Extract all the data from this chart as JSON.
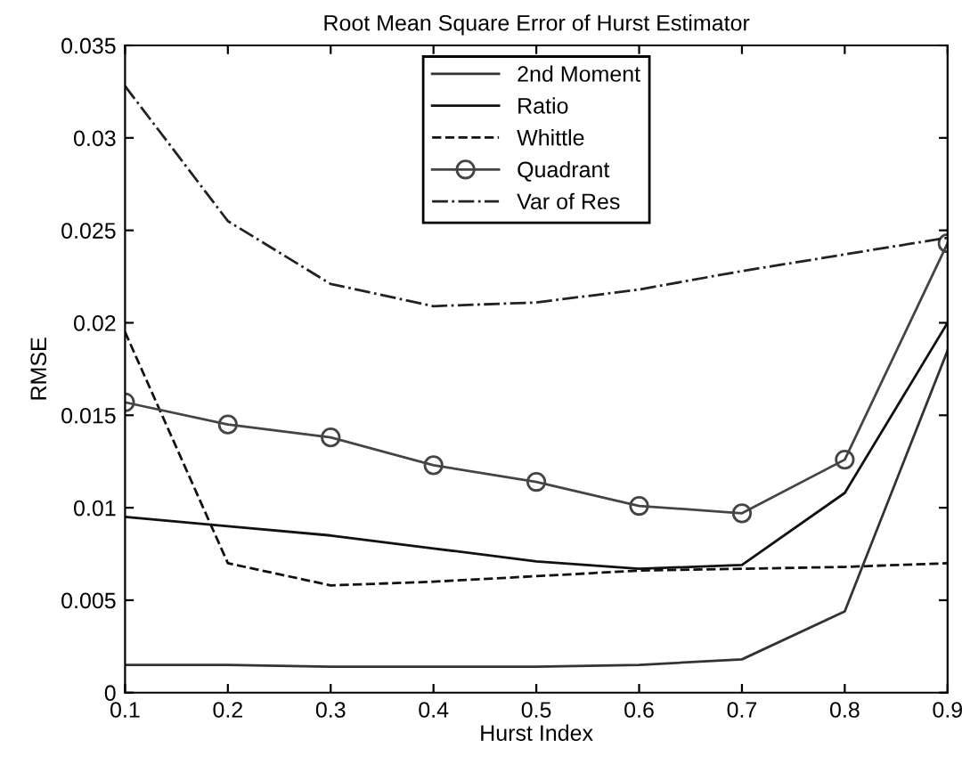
{
  "chart_data": {
    "type": "line",
    "title": "Root Mean Square Error of Hurst Estimator",
    "xlabel": "Hurst Index",
    "ylabel": "RMSE",
    "x": [
      0.1,
      0.2,
      0.3,
      0.4,
      0.5,
      0.6,
      0.7,
      0.8,
      0.9
    ],
    "series": [
      {
        "name": "2nd Moment",
        "color": "#333333",
        "line_style": "solid",
        "marker": "none",
        "values": [
          0.0015,
          0.0015,
          0.0014,
          0.0014,
          0.0014,
          0.0015,
          0.0018,
          0.0044,
          0.0185
        ]
      },
      {
        "name": "Ratio",
        "color": "#111111",
        "line_style": "solid",
        "marker": "none",
        "values": [
          0.0095,
          0.009,
          0.0085,
          0.0078,
          0.0071,
          0.0067,
          0.0069,
          0.0108,
          0.02
        ]
      },
      {
        "name": "Whittle",
        "color": "#111111",
        "line_style": "dashed",
        "marker": "none",
        "values": [
          0.0195,
          0.007,
          0.0058,
          0.006,
          0.0063,
          0.0066,
          0.0067,
          0.0068,
          0.007
        ]
      },
      {
        "name": "Quadrant",
        "color": "#444444",
        "line_style": "solid",
        "marker": "circle",
        "values": [
          0.0157,
          0.0145,
          0.0138,
          0.0123,
          0.0114,
          0.0101,
          0.0097,
          0.0126,
          0.0243
        ]
      },
      {
        "name": "Var of Res",
        "color": "#222222",
        "line_style": "dashdot",
        "marker": "none",
        "values": [
          0.0328,
          0.0255,
          0.0221,
          0.0209,
          0.0211,
          0.0218,
          0.0228,
          0.0237,
          0.0246
        ]
      }
    ],
    "xlim": [
      0.1,
      0.9
    ],
    "ylim": [
      0,
      0.035
    ],
    "xticks": [
      0.1,
      0.2,
      0.3,
      0.4,
      0.5,
      0.6,
      0.7,
      0.8,
      0.9
    ],
    "yticks": [
      0,
      0.005,
      0.01,
      0.015,
      0.02,
      0.025,
      0.03,
      0.035
    ],
    "grid": false,
    "legend": "top"
  }
}
